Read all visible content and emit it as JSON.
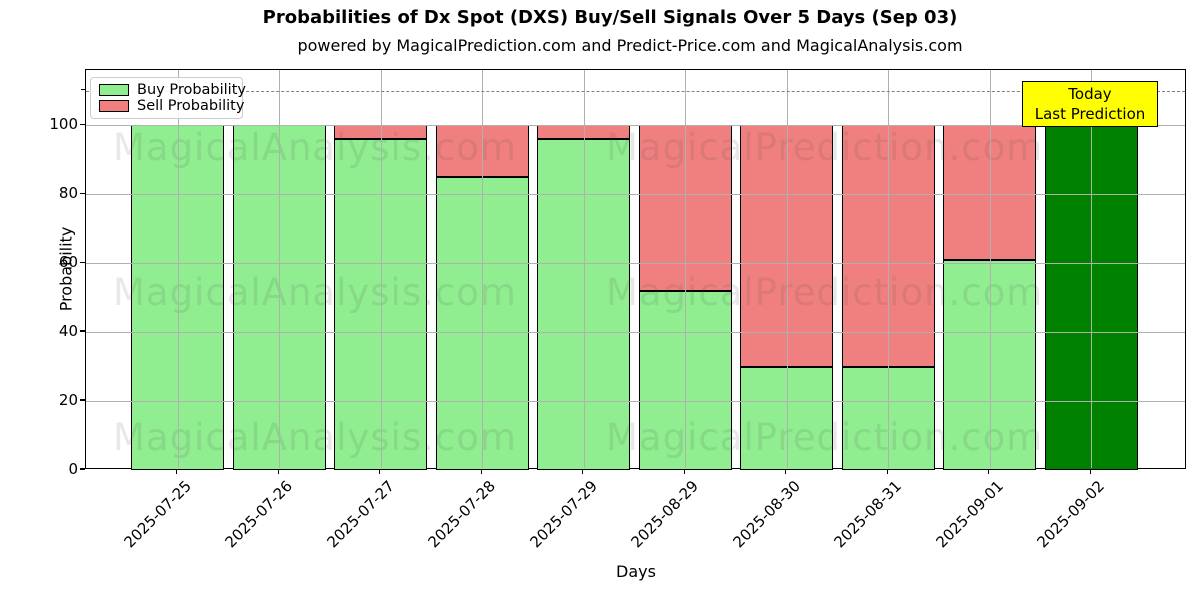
{
  "title": "Probabilities of Dx Spot (DXS) Buy/Sell Signals Over 5 Days (Sep 03)",
  "subtitle": "powered by MagicalPrediction.com and Predict-Price.com and MagicalAnalysis.com",
  "legend": {
    "buy_label": "Buy Probability",
    "sell_label": "Sell Probability"
  },
  "annotation_box": {
    "line1": "Today",
    "line2": "Last Prediction"
  },
  "watermarks": {
    "left": "MagicalAnalysis.com",
    "right": "MagicalPrediction.com"
  },
  "colors": {
    "buy": "#90ee90",
    "sell": "#f08080",
    "today_bar": "#008000",
    "annotation_bg": "#ffff00",
    "bar_edge": "#000000",
    "grid": "#b0b0b0",
    "dashed_line": "#808080",
    "axis": "#000000"
  },
  "chart_data": {
    "type": "bar",
    "stacked": true,
    "title": "Probabilities of Dx Spot (DXS) Buy/Sell Signals Over 5 Days (Sep 03)",
    "xlabel": "Days",
    "ylabel": "Probability",
    "categories": [
      "2025-07-25",
      "2025-07-26",
      "2025-07-27",
      "2025-07-28",
      "2025-07-29",
      "2025-08-29",
      "2025-08-30",
      "2025-08-31",
      "2025-09-01",
      "2025-09-02"
    ],
    "series": [
      {
        "name": "Buy Probability",
        "color": "#90ee90",
        "values": [
          100,
          100,
          96,
          85,
          96,
          52,
          30,
          30,
          61,
          100
        ]
      },
      {
        "name": "Sell Probability",
        "color": "#f08080",
        "values": [
          0,
          0,
          4,
          15,
          4,
          48,
          70,
          70,
          39,
          0
        ]
      }
    ],
    "today_index": 9,
    "today_bar_color": "#008000",
    "yticks": [
      0,
      20,
      40,
      60,
      80,
      100
    ],
    "ylim": [
      0,
      116
    ],
    "dashed_line_y": 110,
    "grid": true,
    "legend_position": "upper left"
  }
}
